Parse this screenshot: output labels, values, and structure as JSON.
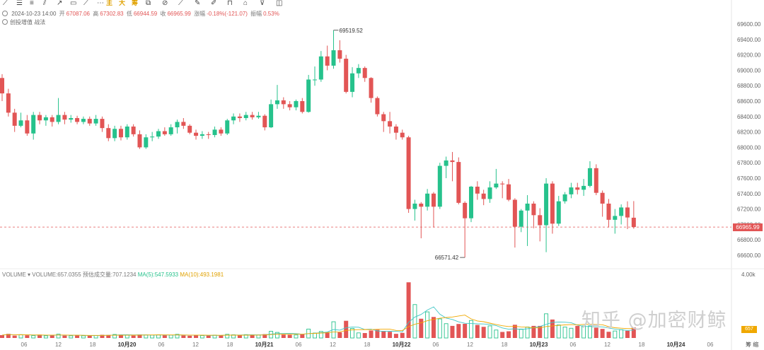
{
  "toolbar": {
    "icons": [
      "pen-icon",
      "lines-icon",
      "hlines-icon",
      "channel-icon",
      "arrow-icon",
      "rect-icon",
      "ray-icon",
      "more-icon"
    ],
    "labels": [
      "主",
      "大",
      "筹"
    ],
    "icons2": [
      "copy-icon",
      "compare-icon",
      "ruler-icon",
      "brush-icon",
      "draw-icon",
      "lock-icon",
      "trash-icon",
      "filter-icon",
      "layers-icon"
    ]
  },
  "info": {
    "datetime": "2024-10-23 14:00",
    "open_label": "开",
    "open": "67087.06",
    "high_label": "高",
    "high": "67302.83",
    "low_label": "低",
    "low": "66944.59",
    "close_label": "收",
    "close": "66965.99",
    "change_label": "涨幅",
    "change": "-0.18%(-121.07)",
    "amp_label": "振幅",
    "amp": "0.53%"
  },
  "sublabel": "创投增值 战法",
  "volume_legend": {
    "title": "VOLUME",
    "vol": "VOLUME:657.0355",
    "est": "预估成交量:707.1234",
    "ma5": "MA(5):547.5933",
    "ma10": "MA(10):493.1981"
  },
  "price_tag": "66965.99",
  "vol_tag": "657",
  "watermark": "知乎 @加密财鲸",
  "corner_label": "筹 缩",
  "colors": {
    "up": "#26c28c",
    "down": "#e25555",
    "ma5": "#3fc6c6",
    "ma10": "#f0a800"
  },
  "chart_data": {
    "type": "candlestick",
    "interval": "1h",
    "y_axis": {
      "ticks": [
        "69600.00",
        "69400.00",
        "69200.00",
        "69000.00",
        "68800.00",
        "68600.00",
        "68400.00",
        "68200.00",
        "68000.00",
        "67800.00",
        "67600.00",
        "67400.00",
        "67200.00",
        "67000.00",
        "66800.00",
        "66600.00"
      ],
      "ylim": [
        66500,
        69700
      ]
    },
    "x_ticks": [
      "06",
      "12",
      "18",
      "10月20",
      "06",
      "12",
      "18",
      "10月21",
      "06",
      "12",
      "18",
      "10月22",
      "06",
      "12",
      "18",
      "10月23",
      "06",
      "12",
      "18",
      "10月24",
      "06"
    ],
    "annotations": [
      {
        "label": "69519.52",
        "price": 69519.52,
        "type": "high"
      },
      {
        "label": "66571.42",
        "price": 66571.42,
        "type": "low"
      }
    ],
    "last_price": 66965.99,
    "candles": [
      [
        68900,
        68700,
        68950,
        68600
      ],
      [
        68700,
        68450,
        68760,
        68400
      ],
      [
        68450,
        68280,
        68500,
        68200
      ],
      [
        68280,
        68350,
        68450,
        68260
      ],
      [
        68350,
        68180,
        68420,
        68150
      ],
      [
        68180,
        68420,
        68460,
        68100
      ],
      [
        68420,
        68350,
        68460,
        68300
      ],
      [
        68350,
        68390,
        68420,
        68280
      ],
      [
        68390,
        68330,
        68420,
        68270
      ],
      [
        68330,
        68420,
        68640,
        68300
      ],
      [
        68420,
        68360,
        68460,
        68300
      ],
      [
        68360,
        68380,
        68420,
        68320
      ],
      [
        68380,
        68330,
        68410,
        68300
      ],
      [
        68330,
        68370,
        68400,
        68300
      ],
      [
        68370,
        68310,
        68400,
        68280
      ],
      [
        68310,
        68370,
        68420,
        68280
      ],
      [
        68370,
        68250,
        68400,
        68200
      ],
      [
        68250,
        68120,
        68300,
        68080
      ],
      [
        68120,
        68240,
        68280,
        68080
      ],
      [
        68240,
        68130,
        68280,
        68090
      ],
      [
        68130,
        68270,
        68300,
        68100
      ],
      [
        68270,
        68170,
        68300,
        68140
      ],
      [
        68170,
        68000,
        68220,
        67980
      ],
      [
        68000,
        68130,
        68170,
        67980
      ],
      [
        68130,
        68140,
        68200,
        68080
      ],
      [
        68140,
        68210,
        68240,
        68110
      ],
      [
        68210,
        68170,
        68260,
        68150
      ],
      [
        68170,
        68260,
        68300,
        68150
      ],
      [
        68260,
        68330,
        68360,
        68180
      ],
      [
        68330,
        68280,
        68380,
        68240
      ],
      [
        68280,
        68190,
        68300,
        68170
      ],
      [
        68190,
        68150,
        68230,
        68100
      ],
      [
        68150,
        68170,
        68210,
        68110
      ],
      [
        68170,
        68160,
        68200,
        68110
      ],
      [
        68160,
        68230,
        68270,
        68130
      ],
      [
        68230,
        68180,
        68260,
        68150
      ],
      [
        68180,
        68350,
        68370,
        68160
      ],
      [
        68350,
        68400,
        68440,
        68300
      ],
      [
        68400,
        68380,
        68440,
        68330
      ],
      [
        68380,
        68420,
        68460,
        68350
      ],
      [
        68420,
        68390,
        68460,
        68360
      ],
      [
        68390,
        68410,
        68460,
        68370
      ],
      [
        68410,
        68260,
        68430,
        68220
      ],
      [
        68260,
        68560,
        68620,
        68250
      ],
      [
        68560,
        68610,
        68810,
        68500
      ],
      [
        68610,
        68560,
        68650,
        68500
      ],
      [
        68560,
        68520,
        68600,
        68480
      ],
      [
        68520,
        68600,
        68620,
        68480
      ],
      [
        68600,
        68460,
        68640,
        68440
      ],
      [
        68460,
        68880,
        68940,
        68450
      ],
      [
        68880,
        68880,
        69050,
        68800
      ],
      [
        68880,
        69180,
        69250,
        68850
      ],
      [
        69180,
        69060,
        69320,
        69000
      ],
      [
        69060,
        69260,
        69519.52,
        69020
      ],
      [
        69260,
        69150,
        69390,
        69100
      ],
      [
        69150,
        68720,
        69200,
        68700
      ],
      [
        68720,
        68960,
        69040,
        68650
      ],
      [
        68960,
        69030,
        69080,
        68900
      ],
      [
        69030,
        68900,
        69050,
        68850
      ],
      [
        68900,
        68640,
        68910,
        68580
      ],
      [
        68640,
        68430,
        68660,
        68400
      ],
      [
        68430,
        68340,
        68460,
        68200
      ],
      [
        68340,
        68270,
        68460,
        68180
      ],
      [
        68270,
        68190,
        68300,
        68100
      ],
      [
        68190,
        68130,
        68230,
        68100
      ],
      [
        68130,
        67200,
        68150,
        67150
      ],
      [
        67200,
        67270,
        67320,
        67050
      ],
      [
        67270,
        67230,
        67290,
        66820
      ],
      [
        67230,
        67400,
        67460,
        67180
      ],
      [
        67400,
        67230,
        67420,
        66960
      ],
      [
        67230,
        67760,
        67800,
        67200
      ],
      [
        67760,
        67830,
        67880,
        67600
      ],
      [
        67830,
        67810,
        67940,
        67560
      ],
      [
        67810,
        67280,
        67870,
        67260
      ],
      [
        67280,
        67080,
        67300,
        66571.42
      ],
      [
        67080,
        67490,
        67500,
        67030
      ],
      [
        67490,
        67400,
        67560,
        67320
      ],
      [
        67400,
        67330,
        67450,
        67250
      ],
      [
        67330,
        67480,
        67560,
        67280
      ],
      [
        67480,
        67530,
        67720,
        67460
      ],
      [
        67530,
        67520,
        67560,
        67340
      ],
      [
        67520,
        67320,
        67590,
        67300
      ],
      [
        67320,
        66970,
        67340,
        66700
      ],
      [
        66970,
        67180,
        67200,
        66900
      ],
      [
        67180,
        67270,
        67380,
        66720
      ],
      [
        67270,
        67120,
        67300,
        66950
      ],
      [
        67120,
        66990,
        67210,
        66780
      ],
      [
        66990,
        67530,
        67600,
        66640
      ],
      [
        67530,
        67010,
        67560,
        66880
      ],
      [
        67010,
        67300,
        67370,
        66980
      ],
      [
        67300,
        67390,
        67420,
        67270
      ],
      [
        67390,
        67480,
        67540,
        67340
      ],
      [
        67480,
        67450,
        67540,
        67390
      ],
      [
        67450,
        67500,
        67590,
        67370
      ],
      [
        67500,
        67730,
        67820,
        67480
      ],
      [
        67730,
        67410,
        67780,
        67380
      ],
      [
        67410,
        67270,
        67440,
        67100
      ],
      [
        67270,
        67060,
        67330,
        66960
      ],
      [
        67060,
        67110,
        67200,
        66880
      ],
      [
        67110,
        67220,
        67260,
        67000
      ],
      [
        67220,
        67090,
        67300,
        66940
      ],
      [
        67087.06,
        66965.99,
        67302.83,
        66944.59
      ]
    ],
    "volume_axis": {
      "ticks": [
        "4.00k"
      ],
      "label": "4.00k"
    },
    "volumes": [
      180,
      260,
      150,
      210,
      170,
      150,
      210,
      140,
      170,
      240,
      150,
      140,
      160,
      140,
      160,
      150,
      200,
      190,
      220,
      210,
      180,
      150,
      220,
      190,
      180,
      200,
      170,
      180,
      230,
      160,
      140,
      170,
      150,
      170,
      180,
      160,
      230,
      200,
      170,
      210,
      180,
      190,
      240,
      420,
      350,
      210,
      200,
      190,
      220,
      560,
      310,
      410,
      370,
      1020,
      360,
      1080,
      600,
      320,
      310,
      470,
      520,
      440,
      390,
      260,
      320,
      3500,
      2100,
      1210,
      1640,
      1320,
      1200,
      900,
      760,
      880,
      890,
      1100,
      820,
      700,
      760,
      500,
      380,
      420,
      830,
      560,
      690,
      760,
      760,
      1520,
      1160,
      820,
      690,
      610,
      760,
      760,
      760,
      650,
      570,
      390,
      440,
      520,
      450,
      657
    ]
  }
}
